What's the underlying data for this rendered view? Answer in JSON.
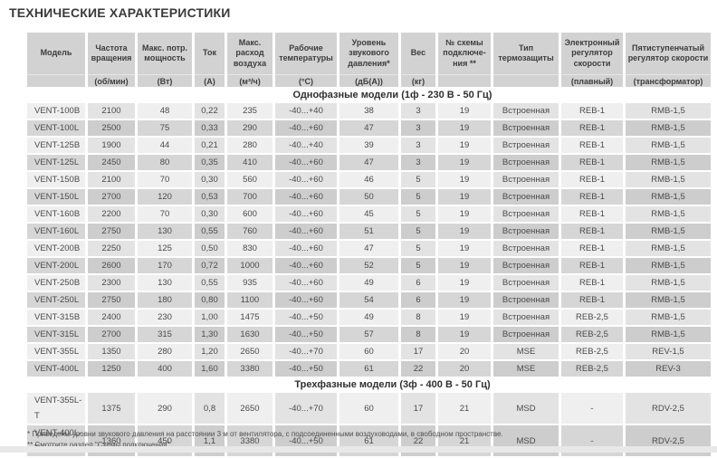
{
  "page": {
    "title": "ТЕХНИЧЕСКИЕ ХАРАКТЕРИСТИКИ",
    "footnote_1": "* Приведены уровни звукового давления на расстоянии 3 м от вентилятора, с подсоединенными воздуховодами, в свободном пространстве.",
    "footnote_2": "** Смотрите раздел \"Схемы подключения\"."
  },
  "colors": {
    "header_bg": "#d2d2d2",
    "row_light": "#efefef",
    "row_light_alt": "#e3e3e3",
    "row_dark": "#d6d6d6",
    "row_dark_alt": "#cdcdcd",
    "text": "#4a4a4a",
    "title_text": "#3a3a3a"
  },
  "table": {
    "columns": [
      {
        "key": "model",
        "label": "Модель",
        "unit": ""
      },
      {
        "key": "speed",
        "label": "Частота вращения",
        "unit": "(об/мин)"
      },
      {
        "key": "power",
        "label": "Макс. потр. мощность",
        "unit": "(Вт)"
      },
      {
        "key": "current",
        "label": "Ток",
        "unit": "(А)"
      },
      {
        "key": "airflow",
        "label": "Макс. расход воздуха",
        "unit": "(м³/ч)"
      },
      {
        "key": "temperature",
        "label": "Рабочие температуры",
        "unit": "(°С)"
      },
      {
        "key": "noise",
        "label": "Уровень звукового давления*",
        "unit": "(дБ(А))"
      },
      {
        "key": "weight",
        "label": "Вес",
        "unit": "(кг)"
      },
      {
        "key": "wiring-diagram",
        "label": "№ схемы подключе-\nния **",
        "unit": ""
      },
      {
        "key": "thermal-protection",
        "label": "Тип термозащиты",
        "unit": ""
      },
      {
        "key": "electronic-controller",
        "label": "Электронный регулятор скорости",
        "unit": "(плавный)"
      },
      {
        "key": "transformer-controller",
        "label": "Пятиступенчатый регулятор скорости",
        "unit": "(трансформатор)"
      }
    ],
    "sections": [
      {
        "title": "Однофазные модели (1ф - 230 В - 50 Гц)",
        "rows": [
          [
            "VENT-100B",
            "2100",
            "48",
            "0,22",
            "235",
            "-40...+40",
            "38",
            "3",
            "19",
            "Встроенная",
            "REB-1",
            "RMB-1,5"
          ],
          [
            "VENT-100L",
            "2500",
            "75",
            "0,33",
            "290",
            "-40...+60",
            "47",
            "3",
            "19",
            "Встроенная",
            "REB-1",
            "RMB-1,5"
          ],
          [
            "VENT-125B",
            "1900",
            "44",
            "0,21",
            "280",
            "-40...+40",
            "39",
            "3",
            "19",
            "Встроенная",
            "REB-1",
            "RMB-1,5"
          ],
          [
            "VENT-125L",
            "2450",
            "80",
            "0,35",
            "410",
            "-40...+60",
            "47",
            "3",
            "19",
            "Встроенная",
            "REB-1",
            "RMB-1,5"
          ],
          [
            "VENT-150B",
            "2100",
            "70",
            "0,30",
            "560",
            "-40...+60",
            "46",
            "5",
            "19",
            "Встроенная",
            "REB-1",
            "RMB-1,5"
          ],
          [
            "VENT-150L",
            "2700",
            "120",
            "0,53",
            "700",
            "-40...+60",
            "50",
            "5",
            "19",
            "Встроенная",
            "REB-1",
            "RMB-1,5"
          ],
          [
            "VENT-160B",
            "2200",
            "70",
            "0,30",
            "600",
            "-40...+60",
            "45",
            "5",
            "19",
            "Встроенная",
            "REB-1",
            "RMB-1,5"
          ],
          [
            "VENT-160L",
            "2750",
            "130",
            "0,55",
            "760",
            "-40...+60",
            "51",
            "5",
            "19",
            "Встроенная",
            "REB-1",
            "RMB-1,5"
          ],
          [
            "VENT-200B",
            "2250",
            "125",
            "0,50",
            "830",
            "-40...+60",
            "47",
            "5",
            "19",
            "Встроенная",
            "REB-1",
            "RMB-1,5"
          ],
          [
            "VENT-200L",
            "2600",
            "170",
            "0,72",
            "1000",
            "-40...+60",
            "52",
            "5",
            "19",
            "Встроенная",
            "REB-1",
            "RMB-1,5"
          ],
          [
            "VENT-250B",
            "2300",
            "130",
            "0,55",
            "935",
            "-40...+60",
            "49",
            "6",
            "19",
            "Встроенная",
            "REB-1",
            "RMB-1,5"
          ],
          [
            "VENT-250L",
            "2750",
            "180",
            "0,80",
            "1100",
            "-40...+60",
            "54",
            "6",
            "19",
            "Встроенная",
            "REB-1",
            "RMB-1,5"
          ],
          [
            "VENT-315B",
            "2400",
            "230",
            "1,00",
            "1475",
            "-40...+50",
            "49",
            "8",
            "19",
            "Встроенная",
            "REB-2,5",
            "RMB-1,5"
          ],
          [
            "VENT-315L",
            "2700",
            "315",
            "1,30",
            "1630",
            "-40...+50",
            "57",
            "8",
            "19",
            "Встроенная",
            "REB-2,5",
            "RMB-1,5"
          ],
          [
            "VENT-355L",
            "1350",
            "280",
            "1,20",
            "2650",
            "-40...+70",
            "60",
            "17",
            "20",
            "MSE",
            "REB-2,5",
            "REV-1,5"
          ],
          [
            "VENT-400L",
            "1250",
            "400",
            "1,60",
            "3380",
            "-40...+50",
            "61",
            "22",
            "20",
            "MSE",
            "REB-2,5",
            "REV-3"
          ]
        ]
      },
      {
        "title": "Трехфазные модели (3ф - 400 В - 50 Гц)",
        "rows": [
          [
            "VENT-355L-T",
            "1375",
            "290",
            "0,8",
            "2650",
            "-40...+70",
            "60",
            "17",
            "21",
            "MSD",
            "-",
            "RDV-2,5"
          ],
          [
            "VENT-400L-T",
            "1360",
            "450",
            "1,1",
            "3380",
            "-40...+50",
            "61",
            "22",
            "21",
            "MSD",
            "-",
            "RDV-2,5"
          ]
        ]
      }
    ]
  }
}
